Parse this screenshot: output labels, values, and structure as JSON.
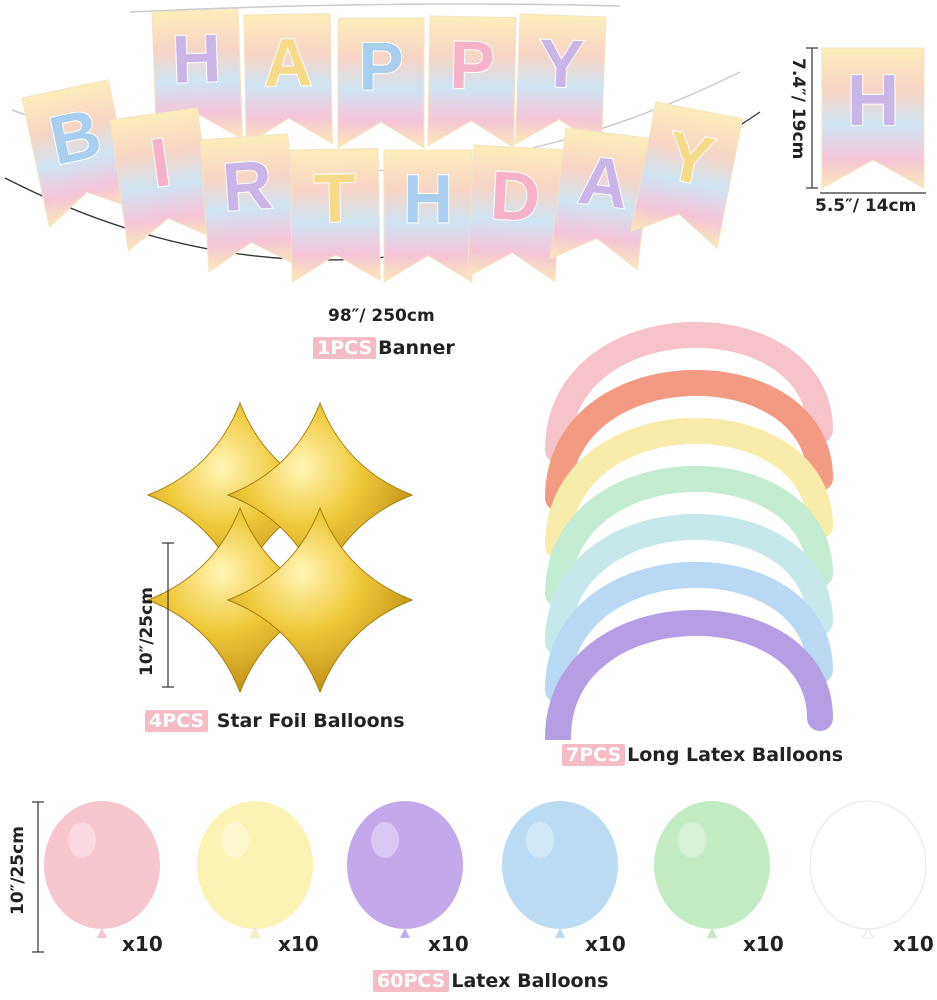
{
  "banner": {
    "letters_top": [
      "H",
      "A",
      "P",
      "P",
      "Y"
    ],
    "letters_bottom": [
      "B",
      "I",
      "R",
      "T",
      "H",
      "D",
      "A",
      "Y"
    ],
    "single_flag_letter": "H",
    "length_label": "98″/ 250cm",
    "flag_height_label": "7.4″/ 19cm",
    "flag_width_label": "5.5″/ 14cm",
    "pcs": "1PCS",
    "name": "Banner",
    "letter_colors": [
      "#c9b6e6",
      "#f5dc8a",
      "#aacfee",
      "#f5b2c8"
    ]
  },
  "star_foil": {
    "size_label": "10″/25cm",
    "pcs": "4PCS",
    "name": "Star Foil Balloons",
    "color": "#e0b52a"
  },
  "long_latex": {
    "pcs": "7PCS",
    "name": "Long Latex Balloons",
    "colors": [
      "#f7c3cb",
      "#f39a82",
      "#f7ecaa",
      "#c3ecd2",
      "#c7e8ea",
      "#b9d9f3",
      "#b59ee3"
    ]
  },
  "latex": {
    "size_label": "10″/25cm",
    "pcs": "60PCS",
    "name": "Latex Balloons",
    "items": [
      {
        "color": "#f6c7cf",
        "qty": "x10"
      },
      {
        "color": "#faf3b3",
        "qty": "x10"
      },
      {
        "color": "#c3a9ec",
        "qty": "x10"
      },
      {
        "color": "#bcdcf3",
        "qty": "x10"
      },
      {
        "color": "#c3ebc4",
        "qty": "x10"
      },
      {
        "color": "#ffffff",
        "qty": "x10"
      }
    ]
  }
}
